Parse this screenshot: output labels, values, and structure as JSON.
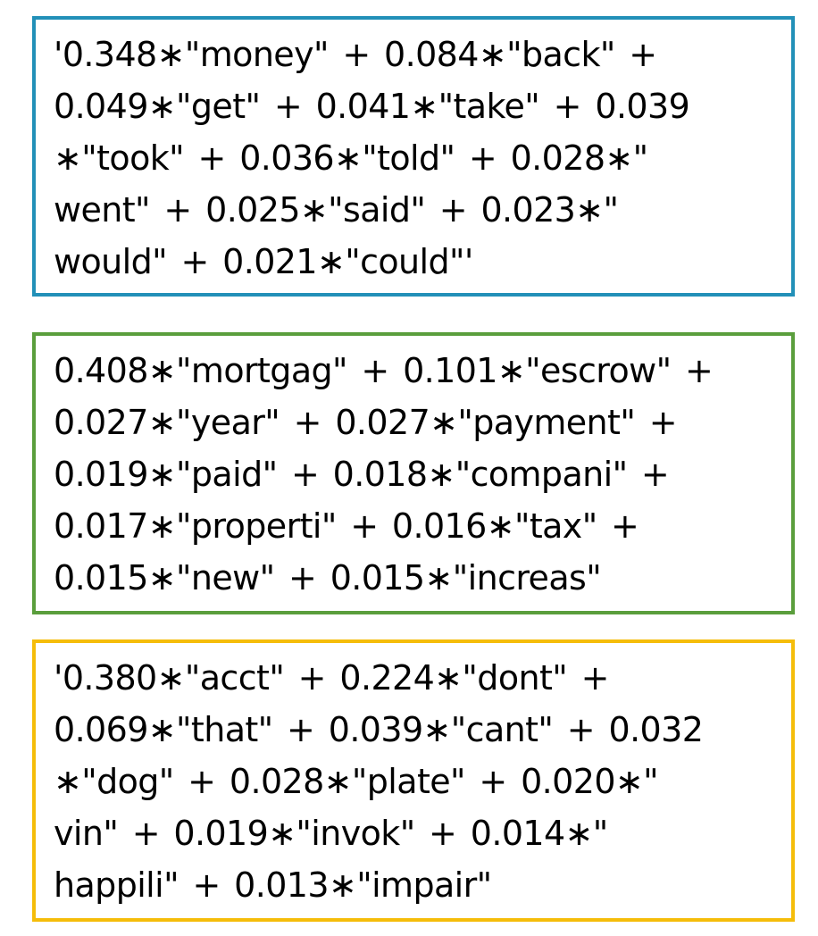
{
  "topics": [
    {
      "border_color": "#2290b8",
      "lines": [
        "'0.348∗\"money\" + 0.084∗\"back\" +",
        "0.049∗\"get\" + 0.041∗\"take\" + 0.039",
        "∗\"took\" + 0.036∗\"told\" + 0.028∗\"",
        "went\" + 0.025∗\"said\" + 0.023∗\"",
        "would\" + 0.021∗\"could\"'"
      ]
    },
    {
      "border_color": "#5a9e3c",
      "lines": [
        "0.408∗\"mortgag\" + 0.101∗\"escrow\" +",
        "0.027∗\"year\" + 0.027∗\"payment\" +",
        "0.019∗\"paid\" + 0.018∗\"compani\" +",
        "0.017∗\"properti\" + 0.016∗\"tax\" +",
        "0.015∗\"new\" + 0.015∗\"increas\""
      ]
    },
    {
      "border_color": "#f5bd0a",
      "lines": [
        "'0.380∗\"acct\" + 0.224∗\"dont\" +",
        "0.069∗\"that\" + 0.039∗\"cant\" + 0.032",
        "∗\"dog\" + 0.028∗\"plate\" + 0.020∗\"",
        "vin\" + 0.019∗\"invok\" + 0.014∗\"",
        "happili\" + 0.013∗\"impair\""
      ]
    }
  ]
}
